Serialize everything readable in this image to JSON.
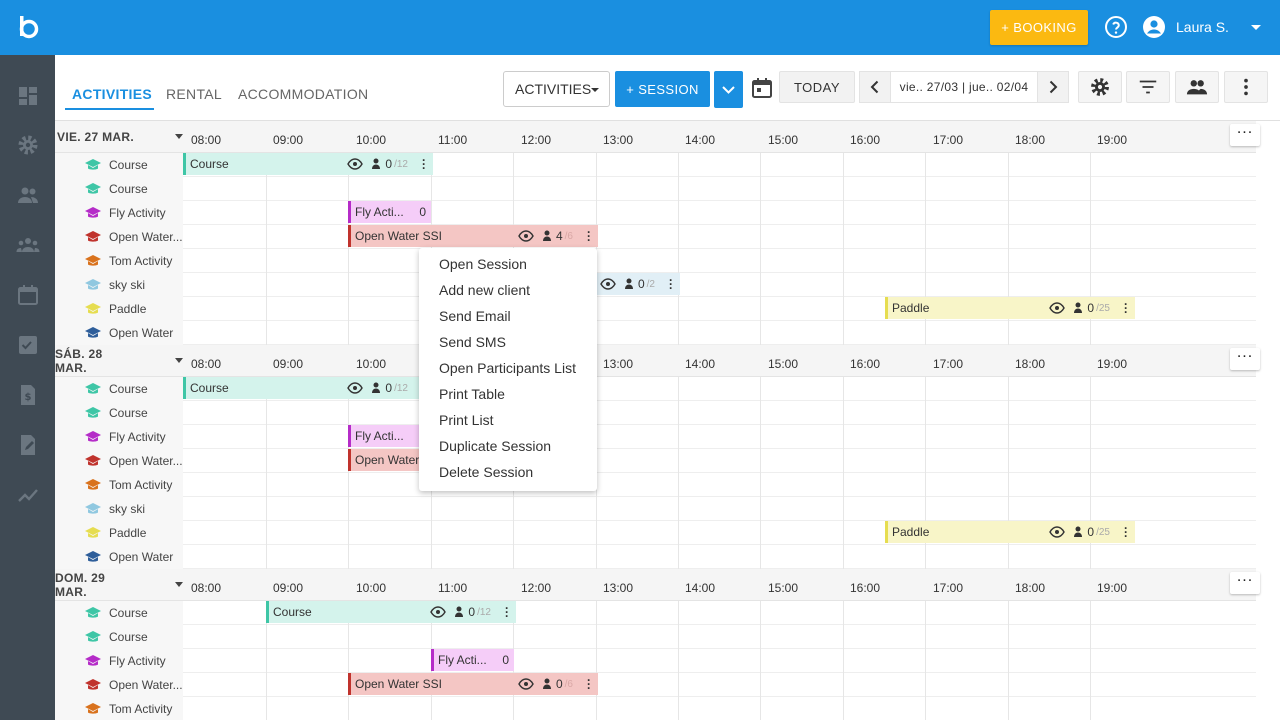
{
  "topbar": {
    "booking_label": "+ BOOKING",
    "user_name": "Laura S."
  },
  "tabs": [
    {
      "label": "ACTIVITIES"
    },
    {
      "label": "RENTAL"
    },
    {
      "label": "ACCOMMODATION"
    }
  ],
  "toolbar": {
    "activity_select": "ACTIVITIES",
    "session_label": "+ SESSION",
    "today_label": "TODAY",
    "date_range": "vie.. 27/03 | jue.. 02/04"
  },
  "hours": [
    "08:00",
    "09:00",
    "10:00",
    "11:00",
    "12:00",
    "13:00",
    "14:00",
    "15:00",
    "16:00",
    "17:00",
    "18:00",
    "19:00"
  ],
  "days": [
    {
      "label": "VIE. 27 MAR.",
      "rows": [
        "Course",
        "Course",
        "Fly Activity",
        "Open Water...",
        "Tom Activity",
        "sky ski",
        "Paddle",
        "Open Water"
      ]
    },
    {
      "label": "SÁB. 28 MAR.",
      "rows": [
        "Course",
        "Course",
        "Fly Activity",
        "Open Water...",
        "Tom Activity",
        "sky ski",
        "Paddle",
        "Open Water"
      ]
    },
    {
      "label": "DOM. 29 MAR.",
      "rows": [
        "Course",
        "Course",
        "Fly Activity",
        "Open Water...",
        "Tom Activity"
      ]
    }
  ],
  "events": {
    "d1_course": {
      "title": "Course",
      "count": "0",
      "max": "/12"
    },
    "d1_fly": {
      "title": "Fly Acti...",
      "count": "0"
    },
    "d1_ow": {
      "title": "Open Water SSI",
      "count": "4",
      "max": "/6"
    },
    "d1_sky": {
      "count": "0",
      "max": "/2"
    },
    "d1_paddle": {
      "title": "Paddle",
      "count": "0",
      "max": "/25"
    },
    "d2_course": {
      "title": "Course",
      "count": "0",
      "max": "/12"
    },
    "d2_fly": {
      "title": "Fly Acti..."
    },
    "d2_ow": {
      "title": "Open Water"
    },
    "d2_paddle": {
      "title": "Paddle",
      "count": "0",
      "max": "/25"
    },
    "d3_course": {
      "title": "Course",
      "count": "0",
      "max": "/12"
    },
    "d3_fly": {
      "title": "Fly Acti...",
      "count": "0"
    },
    "d3_ow": {
      "title": "Open Water SSI",
      "count": "0",
      "max": "/6"
    }
  },
  "context_menu": [
    "Open Session",
    "Add new client",
    "Send Email",
    "Send SMS",
    "Open Participants List",
    "Print Table",
    "Print List",
    "Duplicate Session",
    "Delete Session"
  ],
  "colors": {
    "primary": "#1a8fe0",
    "accent": "#fbb911",
    "sidebar": "#3f4a54",
    "course": "#3ec6a6",
    "fly": "#b52cc8",
    "openwater": "#c0332d",
    "tom": "#d9721d",
    "sky": "#90c8e0",
    "paddle": "#e6dd50",
    "openwater2": "#2e5e9a"
  }
}
